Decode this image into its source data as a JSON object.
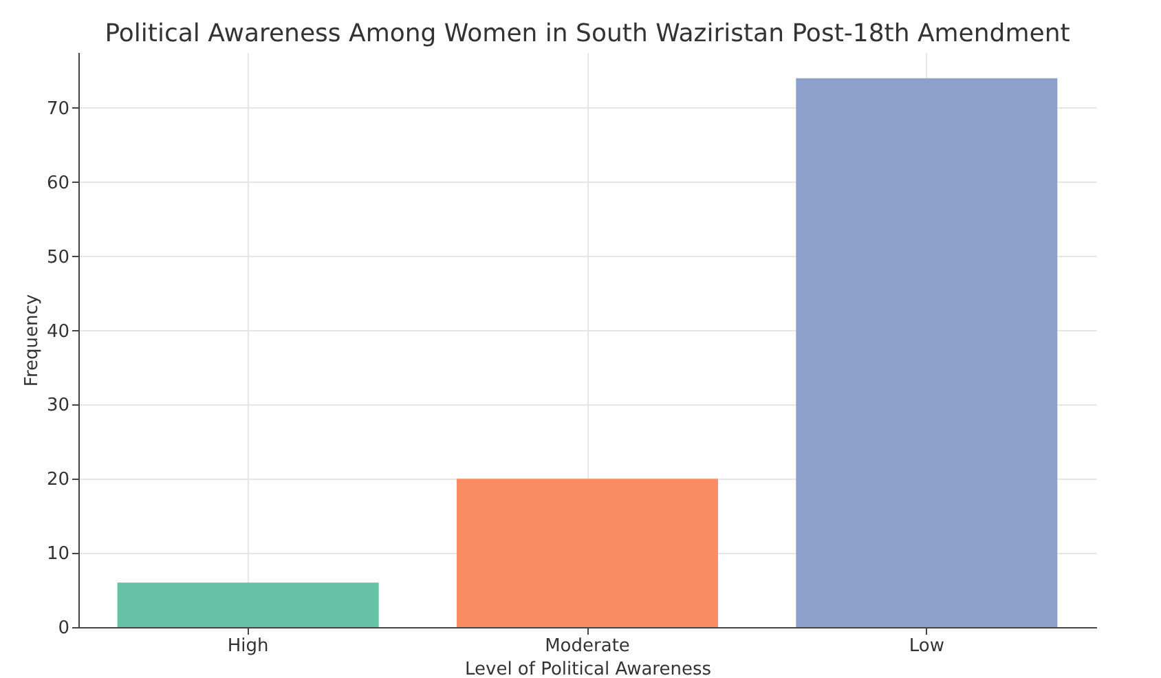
{
  "chart_data": {
    "type": "bar",
    "title": "Political Awareness Among Women in South Waziristan Post-18th Amendment",
    "xlabel": "Level of Political Awareness",
    "ylabel": "Frequency",
    "categories": [
      "High",
      "Moderate",
      "Low"
    ],
    "values": [
      6,
      20,
      74
    ],
    "colors": [
      "#66c2a5",
      "#fc8d62",
      "#8da0cb"
    ],
    "ylim": [
      0,
      77.5
    ],
    "yticks": [
      0,
      10,
      20,
      30,
      40,
      50,
      60,
      70
    ],
    "grid": true
  }
}
